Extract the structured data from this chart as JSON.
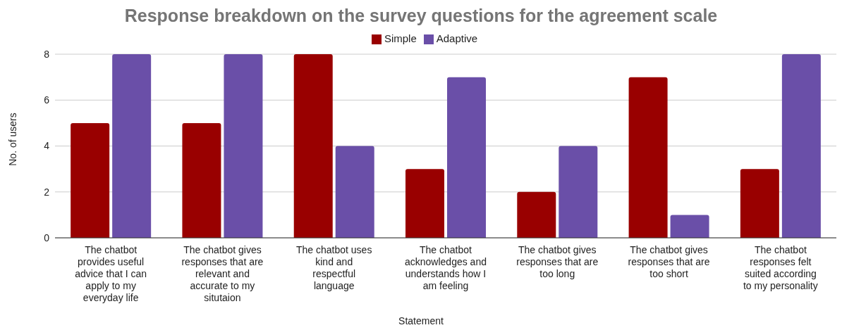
{
  "chart_data": {
    "type": "bar",
    "title": "Response breakdown on the survey questions for the agreement scale",
    "xlabel": "Statement",
    "ylabel": "No. of users",
    "categories": [
      "The chatbot provides useful advice that I can apply to my everyday life",
      "The chatbot gives responses that are relevant and accurate to my situtaion",
      "The chatbot uses kind and respectful language",
      "The chatbot acknowledges and understands how I am feeling",
      "The chatbot gives responses that are too long",
      "The chatbot gives responses that are too short",
      "The chatbot responses felt suited according to my personality"
    ],
    "series": [
      {
        "name": "Simple",
        "color": "#990000",
        "values": [
          5,
          5,
          8,
          3,
          2,
          7,
          3
        ]
      },
      {
        "name": "Adaptive",
        "color": "#6a4fa8",
        "values": [
          8,
          8,
          4,
          7,
          4,
          1,
          8
        ]
      }
    ],
    "ylim": [
      0,
      8
    ],
    "yticks": [
      0,
      2,
      4,
      6,
      8
    ],
    "grid": "y",
    "legend": "top"
  }
}
